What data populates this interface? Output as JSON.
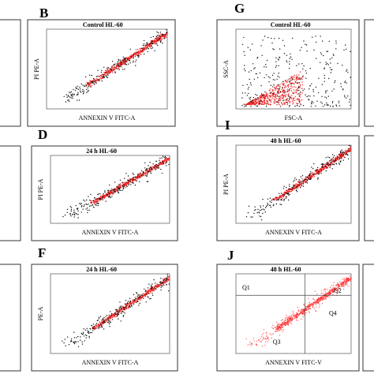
{
  "panels": [
    {
      "letter": "B",
      "title": "Control HL-60",
      "x_label": "ANNEXIN V FITC-A",
      "y_label": "PI PE-A"
    },
    {
      "letter": "G",
      "title": "Control HL-60",
      "x_label": "FSC-A",
      "y_label": "SSC-A"
    },
    {
      "letter": "D",
      "title": "24 h HL-60",
      "x_label": "ANNEXIN V FITC-A",
      "y_label": "PI PE-A"
    },
    {
      "letter": "I",
      "title": "48 h HL-60",
      "x_label": "ANNEXIN V FITC-A",
      "y_label": "PI PE-A"
    },
    {
      "letter": "F",
      "title": "24 h HL-60",
      "x_label": "ANNEXIN V FITC-A",
      "y_label": "PE-A"
    },
    {
      "letter": "J",
      "title": "48 h HL-60",
      "x_label": "ANNEXIN V FITC-V",
      "y_label": "",
      "quadrants": [
        "Q1",
        "Q2",
        "Q3",
        "Q4"
      ]
    }
  ]
}
